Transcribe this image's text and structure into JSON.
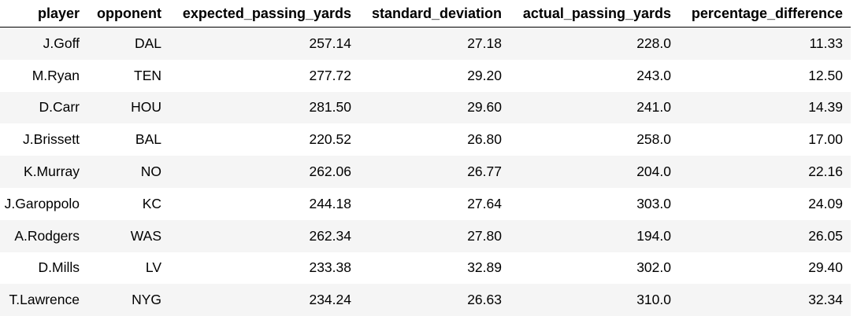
{
  "table": {
    "columns": [
      "player",
      "opponent",
      "expected_passing_yards",
      "standard_deviation",
      "actual_passing_yards",
      "percentage_difference"
    ],
    "rows": [
      [
        "J.Goff",
        "DAL",
        "257.14",
        "27.18",
        "228.0",
        "11.33"
      ],
      [
        "M.Ryan",
        "TEN",
        "277.72",
        "29.20",
        "243.0",
        "12.50"
      ],
      [
        "D.Carr",
        "HOU",
        "281.50",
        "29.60",
        "241.0",
        "14.39"
      ],
      [
        "J.Brissett",
        "BAL",
        "220.52",
        "26.80",
        "258.0",
        "17.00"
      ],
      [
        "K.Murray",
        "NO",
        "262.06",
        "26.77",
        "204.0",
        "22.16"
      ],
      [
        "J.Garoppolo",
        "KC",
        "244.18",
        "27.64",
        "303.0",
        "24.09"
      ],
      [
        "A.Rodgers",
        "WAS",
        "262.34",
        "27.80",
        "194.0",
        "26.05"
      ],
      [
        "D.Mills",
        "LV",
        "233.38",
        "32.89",
        "302.0",
        "29.40"
      ],
      [
        "T.Lawrence",
        "NYG",
        "234.24",
        "26.63",
        "310.0",
        "32.34"
      ]
    ]
  }
}
